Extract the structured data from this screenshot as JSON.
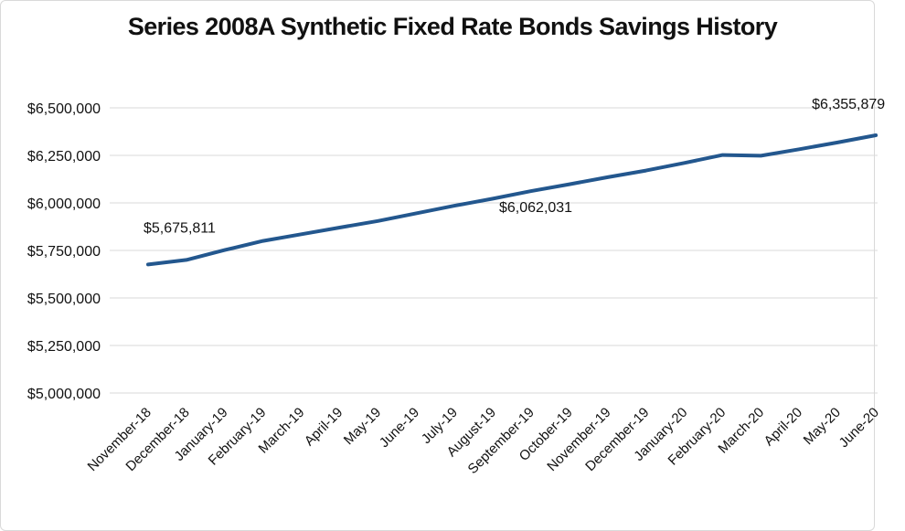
{
  "chart_data": {
    "type": "line",
    "title": "Series 2008A Synthetic Fixed Rate Bonds Savings History",
    "categories": [
      "November-18",
      "December-18",
      "January-19",
      "February-19",
      "March-19",
      "April-19",
      "May-19",
      "June-19",
      "July-19",
      "August-19",
      "September-19",
      "October-19",
      "November-19",
      "December-19",
      "January-20",
      "February-20",
      "March-20",
      "April-20",
      "May-20",
      "June-20"
    ],
    "series": [
      {
        "color": "#23578e",
        "values": [
          5675811,
          5700000,
          5752000,
          5800000,
          5835000,
          5870000,
          5905000,
          5945000,
          5985000,
          6022000,
          6062031,
          6098000,
          6135000,
          6170000,
          6210000,
          6252000,
          6248000,
          6282000,
          6318000,
          6355879
        ]
      }
    ],
    "ylim": [
      5000000,
      6500000
    ],
    "yticks": [
      5000000,
      5250000,
      5500000,
      5750000,
      6000000,
      6250000,
      6500000
    ],
    "ytick_labels": [
      "$5,000,000",
      "$5,250,000",
      "$5,500,000",
      "$5,750,000",
      "$6,000,000",
      "$6,250,000",
      "$6,500,000"
    ],
    "data_labels": [
      {
        "index": 0,
        "text": "$5,675,811"
      },
      {
        "index": 10,
        "text": "$6,062,031"
      },
      {
        "index": 19,
        "text": "$6,355,879"
      }
    ],
    "grid": true,
    "legend": "none"
  }
}
